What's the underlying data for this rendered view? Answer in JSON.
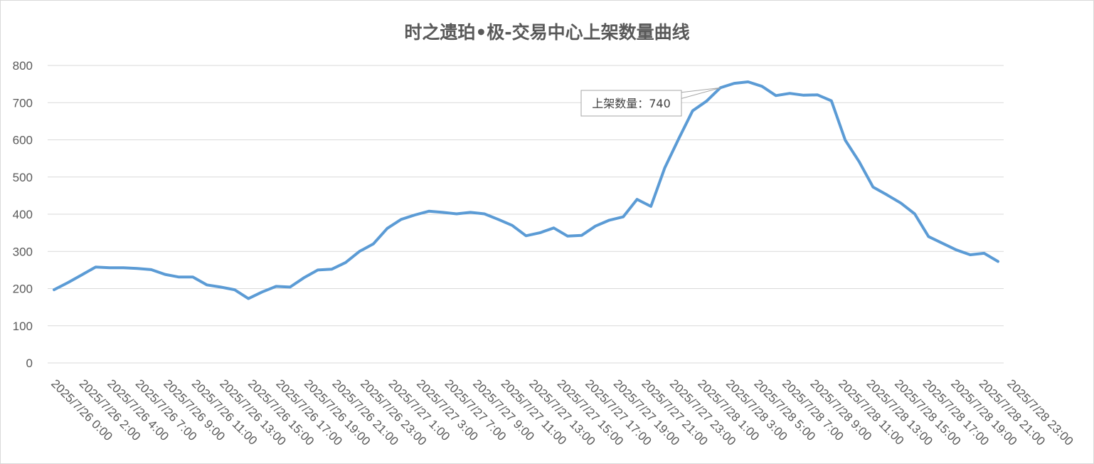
{
  "chart_data": {
    "type": "line",
    "title": "时之遗珀•极-交易中心上架数量曲线",
    "xlabel": "",
    "ylabel": "",
    "ylim": [
      0,
      800
    ],
    "yticks": [
      0,
      100,
      200,
      300,
      400,
      500,
      600,
      700,
      800
    ],
    "grid": true,
    "legend": "none",
    "line_color": "#5b9bd5",
    "x_tick_labels": [
      "2025/7/26 0:00",
      "2025/7/26 2:00",
      "2025/7/26 4:00",
      "2025/7/26 7:00",
      "2025/7/26 9:00",
      "2025/7/26 11:00",
      "2025/7/26 13:00",
      "2025/7/26 15:00",
      "2025/7/26 17:00",
      "2025/7/26 19:00",
      "2025/7/26 21:00",
      "2025/7/26 23:00",
      "2025/7/27 1:00",
      "2025/7/27 3:00",
      "2025/7/27 7:00",
      "2025/7/27 9:00",
      "2025/7/27 11:00",
      "2025/7/27 13:00",
      "2025/7/27 15:00",
      "2025/7/27 17:00",
      "2025/7/27 19:00",
      "2025/7/27 21:00",
      "2025/7/27 23:00",
      "2025/7/28 1:00",
      "2025/7/28 3:00",
      "2025/7/28 5:00",
      "2025/7/28 7:00",
      "2025/7/28 9:00",
      "2025/7/28 11:00",
      "2025/7/28 13:00",
      "2025/7/28 15:00",
      "2025/7/28 17:00",
      "2025/7/28 19:00",
      "2025/7/28 21:00",
      "2025/7/28 23:00"
    ],
    "series": [
      {
        "values": [
          197,
          216,
          237,
          258,
          256,
          256,
          254,
          251,
          238,
          231,
          231,
          210,
          204,
          197,
          173,
          191,
          206,
          204,
          229,
          250,
          252,
          270,
          300,
          320,
          362,
          386,
          398,
          408,
          405,
          401,
          405,
          401,
          386,
          370,
          342,
          350,
          363,
          341,
          343,
          368,
          384,
          393,
          440,
          421,
          525,
          603,
          678,
          704,
          740,
          752,
          756,
          744,
          719,
          725,
          720,
          721,
          705,
          599,
          541,
          473,
          452,
          430,
          401,
          340,
          322,
          304,
          291,
          295,
          273
        ]
      }
    ],
    "annotation": {
      "label": "上架数量：740",
      "value": 740
    }
  }
}
